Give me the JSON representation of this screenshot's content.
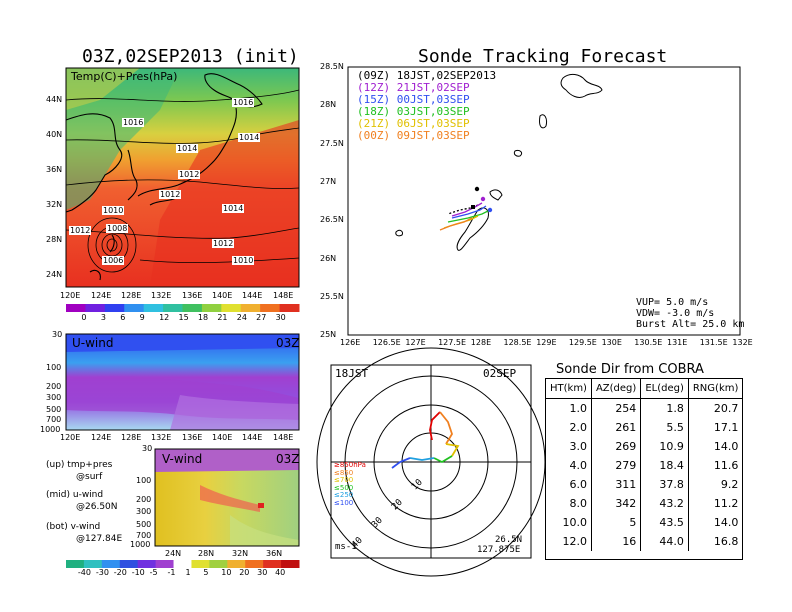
{
  "left_title": "03Z,02SEP2013 (init)",
  "right_title": "Sonde Tracking Forecast",
  "map_panel": {
    "label": "Temp(C)+Pres(hPa)",
    "lat_ticks": [
      "44N",
      "40N",
      "36N",
      "32N",
      "28N",
      "24N"
    ],
    "lon_ticks": [
      "120E",
      "124E",
      "128E",
      "132E",
      "136E",
      "140E",
      "144E",
      "148E"
    ],
    "isobar_labels": [
      "1016",
      "1016",
      "1014",
      "1014",
      "1012",
      "1012",
      "1014",
      "1010",
      "1012",
      "1008",
      "1012",
      "1006",
      "1010"
    ],
    "colorbar_ticks": [
      "0",
      "3",
      "6",
      "9",
      "12",
      "15",
      "18",
      "21",
      "24",
      "27",
      "30"
    ]
  },
  "uwind_panel": {
    "label": "U-wind",
    "time": "03Z",
    "y_ticks": [
      "30",
      "100",
      "200",
      "300",
      "500",
      "700",
      "1000"
    ],
    "x_ticks": [
      "120E",
      "124E",
      "128E",
      "132E",
      "136E",
      "140E",
      "144E",
      "148E"
    ]
  },
  "vwind_panel": {
    "label": "V-wind",
    "time": "03Z",
    "y_ticks": [
      "30",
      "100",
      "200",
      "300",
      "500",
      "700",
      "1000"
    ],
    "x_ticks": [
      "24N",
      "28N",
      "32N",
      "36N"
    ],
    "colorbar_ticks": [
      "-40",
      "-30",
      "-20",
      "-10",
      "-5",
      "-1",
      "1",
      "5",
      "10",
      "20",
      "30",
      "40"
    ]
  },
  "notes": {
    "up_1": "(up) tmp+pres",
    "up_2": "@surf",
    "mid_1": "(mid) u-wind",
    "mid_2": "@26.50N",
    "bot_1": "(bot) v-wind",
    "bot_2": "@127.84E"
  },
  "tracking_map": {
    "lat_ticks": [
      "28.5N",
      "28N",
      "27.5N",
      "27N",
      "26.5N",
      "26N",
      "25.5N",
      "25N"
    ],
    "lon_ticks": [
      "126E",
      "126.5E",
      "127E",
      "127.5E",
      "128E",
      "128.5E",
      "129E",
      "129.5E",
      "130E",
      "130.5E",
      "131E",
      "131.5E",
      "132E"
    ],
    "legend": [
      {
        "text": "(09Z) 18JST,02SEP2013",
        "color": "#000000"
      },
      {
        "text": "(12Z) 21JST,02SEP",
        "color": "#a020d0"
      },
      {
        "text": "(15Z) 00JST,03SEP",
        "color": "#3050f0"
      },
      {
        "text": "(18Z) 03JST,03SEP",
        "color": "#20c020"
      },
      {
        "text": "(21Z) 06JST,03SEP",
        "color": "#e0c000"
      },
      {
        "text": "(00Z) 09JST,03SEP",
        "color": "#f08020"
      }
    ],
    "vup": "VUP= 5.0 m/s",
    "vdw": "VDW= -3.0 m/s",
    "burst": "Burst Alt= 25.0 km"
  },
  "polar_panel": {
    "time": "18JST",
    "date": "02SEP",
    "unit": "ms-1",
    "ring_labels": [
      "10",
      "20",
      "30",
      "40"
    ],
    "levels": [
      {
        "text": "≥850hPa",
        "color": "#e00000"
      },
      {
        "text": "≤850",
        "color": "#f08020"
      },
      {
        "text": "≤700",
        "color": "#e0c000"
      },
      {
        "text": "≤500",
        "color": "#20c020"
      },
      {
        "text": "≤250",
        "color": "#20a0e0"
      },
      {
        "text": "≤100",
        "color": "#3050f0"
      }
    ],
    "loc_lat": "26.5N",
    "loc_lon": "127.875E"
  },
  "sonde_table": {
    "title": "Sonde Dir from COBRA",
    "headers": [
      "HT(km)",
      "AZ(deg)",
      "EL(deg)",
      "RNG(km)"
    ],
    "rows": [
      [
        "1.0",
        "254",
        "1.8",
        "20.7"
      ],
      [
        "2.0",
        "261",
        "5.5",
        "17.1"
      ],
      [
        "3.0",
        "269",
        "10.9",
        "14.0"
      ],
      [
        "4.0",
        "279",
        "18.4",
        "11.6"
      ],
      [
        "6.0",
        "311",
        "37.8",
        "9.2"
      ],
      [
        "8.0",
        "342",
        "43.2",
        "11.2"
      ],
      [
        "10.0",
        "5",
        "43.5",
        "14.0"
      ],
      [
        "12.0",
        "16",
        "44.0",
        "16.8"
      ]
    ]
  },
  "chart_data": {
    "type": "table",
    "title": "Sonde Dir from COBRA",
    "columns": [
      "HT(km)",
      "AZ(deg)",
      "EL(deg)",
      "RNG(km)"
    ],
    "rows": [
      [
        1.0,
        254,
        1.8,
        20.7
      ],
      [
        2.0,
        261,
        5.5,
        17.1
      ],
      [
        3.0,
        269,
        10.9,
        14.0
      ],
      [
        4.0,
        279,
        18.4,
        11.6
      ],
      [
        6.0,
        311,
        37.8,
        9.2
      ],
      [
        8.0,
        342,
        43.2,
        11.2
      ],
      [
        10.0,
        5,
        43.5,
        14.0
      ],
      [
        12.0,
        16,
        44.0,
        16.8
      ]
    ]
  }
}
